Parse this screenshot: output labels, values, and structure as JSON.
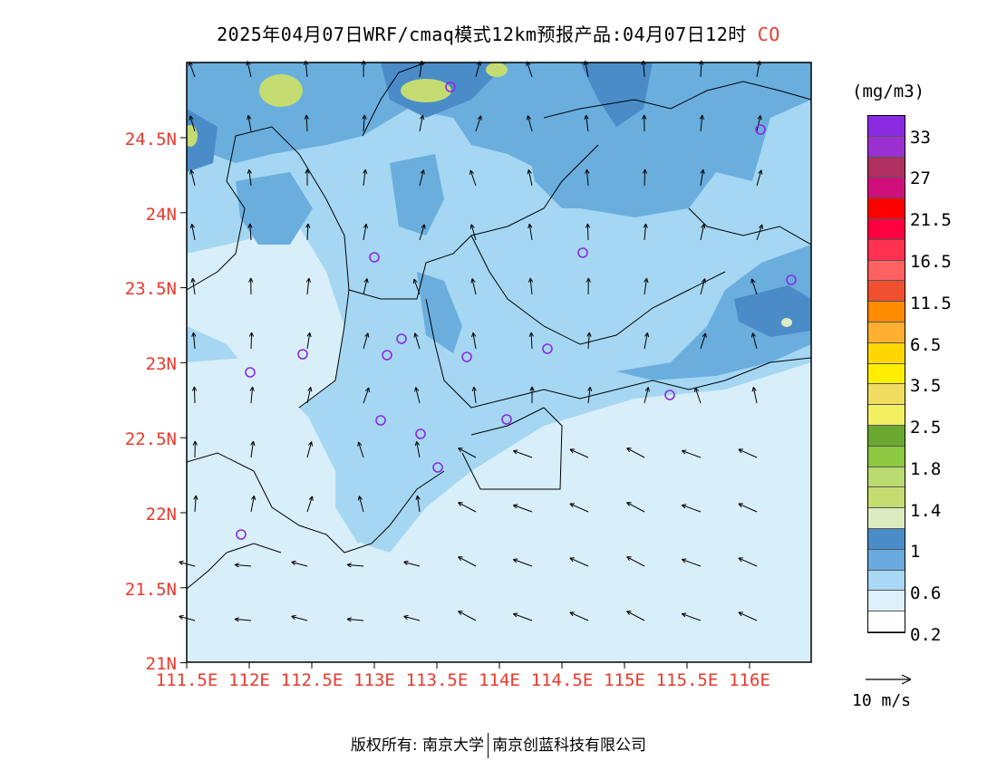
{
  "title": {
    "text": "2025年04月07日WRF/cmaq模式12km预报产品:04月07日12时",
    "variable": "CO"
  },
  "y_ticks": [
    "24.5N",
    "24N",
    "23.5N",
    "23N",
    "22.5N",
    "22N",
    "21.5N",
    "21N"
  ],
  "x_ticks": [
    "111.5E",
    "112E",
    "112.5E",
    "113E",
    "113.5E",
    "114E",
    "114.5E",
    "115E",
    "115.5E",
    "116E"
  ],
  "legend": {
    "unit": "(mg/m3)",
    "labels": [
      "33",
      "27",
      "21.5",
      "16.5",
      "11.5",
      "6.5",
      "3.5",
      "2.5",
      "1.8",
      "1.4",
      "1",
      "0.6",
      "0.2"
    ],
    "colors": [
      "#8a2be2",
      "#9b30d0",
      "#b03060",
      "#d0107a",
      "#ff0000",
      "#ff0040",
      "#ff3050",
      "#ff6060",
      "#f05030",
      "#ff8c00",
      "#ffb030",
      "#ffd700",
      "#ffee00",
      "#f0dc60",
      "#f0f060",
      "#6aa832",
      "#8cc840",
      "#b8dc70",
      "#c4dc70",
      "#dcecc0",
      "#4a8cc8",
      "#6aaade",
      "#a8d8f4",
      "#ddf0fb",
      "#ffffff"
    ]
  },
  "map_colors": {
    "level_0_2": "#d8eef9",
    "level_0_6": "#a5d7f3",
    "level_0_8": "#6aaede",
    "level_1": "#4a8cc8",
    "level_1_4": "#e0ecc0",
    "level_1_8": "#c4dc72",
    "station": "#8a2be2"
  },
  "wind_reference": "10 m/s",
  "footer": {
    "left": "版权所有: 南京大学",
    "right": "南京创蓝科技有限公司"
  }
}
